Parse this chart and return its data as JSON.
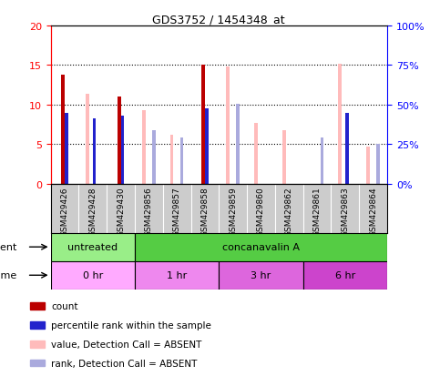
{
  "title": "GDS3752 / 1454348_at",
  "samples": [
    "GSM429426",
    "GSM429428",
    "GSM429430",
    "GSM429856",
    "GSM429857",
    "GSM429858",
    "GSM429859",
    "GSM429860",
    "GSM429862",
    "GSM429861",
    "GSM429863",
    "GSM429864"
  ],
  "count_values": [
    13.8,
    0,
    11.0,
    0,
    0,
    15.0,
    0,
    0,
    0,
    0,
    0,
    0
  ],
  "percentile_values": [
    45,
    41.5,
    43,
    0,
    0,
    47.5,
    0,
    0,
    0,
    0,
    44.5,
    0
  ],
  "absent_value_values": [
    0,
    57,
    0,
    46.5,
    31,
    0,
    74,
    38.5,
    34,
    0,
    76,
    23.5
  ],
  "absent_rank_values": [
    0,
    0,
    0,
    34,
    29,
    0,
    50.5,
    0,
    0,
    29,
    0,
    25.5
  ],
  "ylim_left": [
    0,
    20
  ],
  "ylim_right": [
    0,
    100
  ],
  "yticks_left": [
    0,
    5,
    10,
    15,
    20
  ],
  "yticks_right": [
    0,
    25,
    50,
    75,
    100
  ],
  "ytick_labels_left": [
    "0",
    "5",
    "10",
    "15",
    "20"
  ],
  "ytick_labels_right": [
    "0%",
    "25%",
    "50%",
    "75%",
    "100%"
  ],
  "agent_groups": [
    {
      "label": "untreated",
      "start": 0,
      "end": 3,
      "color": "#99ee88"
    },
    {
      "label": "concanavalin A",
      "start": 3,
      "end": 12,
      "color": "#55cc44"
    }
  ],
  "time_groups": [
    {
      "label": "0 hr",
      "start": 0,
      "end": 3,
      "color": "#ffaaff"
    },
    {
      "label": "1 hr",
      "start": 3,
      "end": 6,
      "color": "#ee88ee"
    },
    {
      "label": "3 hr",
      "start": 6,
      "end": 9,
      "color": "#dd66dd"
    },
    {
      "label": "6 hr",
      "start": 9,
      "end": 12,
      "color": "#cc44cc"
    }
  ],
  "count_color": "#bb0000",
  "percentile_color": "#2222cc",
  "absent_value_color": "#ffbbbb",
  "absent_rank_color": "#aaaadd",
  "bar_width": 0.12,
  "grid_color": "#000000",
  "bg_color": "#ffffff",
  "plot_bg_color": "#ffffff",
  "gray_bg": "#cccccc",
  "legend_labels": [
    "count",
    "percentile rank within the sample",
    "value, Detection Call = ABSENT",
    "rank, Detection Call = ABSENT"
  ]
}
